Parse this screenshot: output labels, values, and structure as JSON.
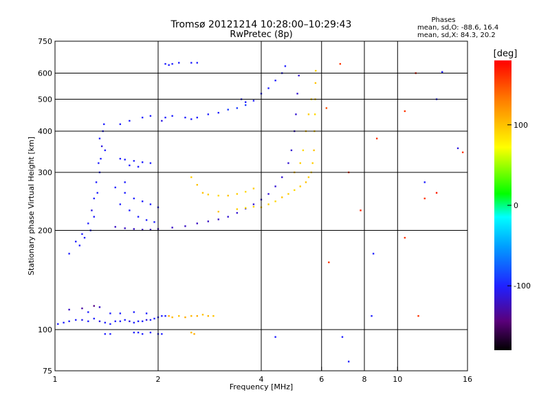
{
  "chart_data": {
    "type": "scatter",
    "title": "Tromsø 20121214 10:28:00–10:29:43",
    "subtitle": "RwPretec (8p)",
    "xlabel": "Frequency [MHz]",
    "ylabel": "Stationary phase Virtual Height [km]",
    "x_scale": "log",
    "y_scale": "log",
    "xlim": [
      1,
      16
    ],
    "ylim": [
      75,
      750
    ],
    "x_ticks": [
      1,
      2,
      4,
      6,
      8,
      10,
      16
    ],
    "y_ticks": [
      75,
      100,
      200,
      300,
      400,
      500,
      600,
      750
    ],
    "x_gridlines": [
      2,
      4,
      6,
      8,
      10
    ],
    "y_gridlines": [
      100,
      200,
      300,
      400,
      500,
      600
    ],
    "grid": true,
    "phase_stats": {
      "title": "Phases",
      "o_line": "mean, sd,O: -88.6, 16.4",
      "x_line": "mean, sd,X:  84.3, 20.2"
    },
    "colorbar": {
      "label": "[deg]",
      "range": [
        -180,
        180
      ],
      "ticks": [
        100,
        0,
        -100
      ],
      "colormap": "rainbow"
    },
    "series": [
      {
        "values": [
          [
            1.02,
            104,
            -100
          ],
          [
            1.06,
            105,
            -100
          ],
          [
            1.1,
            106,
            -100
          ],
          [
            1.15,
            107,
            -100
          ],
          [
            1.2,
            107,
            -105
          ],
          [
            1.25,
            106,
            -100
          ],
          [
            1.3,
            108,
            -100
          ],
          [
            1.35,
            106,
            -110
          ],
          [
            1.4,
            105,
            -100
          ],
          [
            1.45,
            104,
            -100
          ],
          [
            1.5,
            106,
            -100
          ],
          [
            1.55,
            106,
            -100
          ],
          [
            1.6,
            107,
            -100
          ],
          [
            1.65,
            106,
            -110
          ],
          [
            1.7,
            105,
            -100
          ],
          [
            1.75,
            106,
            -100
          ],
          [
            1.8,
            106,
            -100
          ],
          [
            1.85,
            107,
            -110
          ],
          [
            1.9,
            107,
            -100
          ],
          [
            1.95,
            108,
            -100
          ],
          [
            2.0,
            109,
            -100
          ],
          [
            2.05,
            110,
            -100
          ],
          [
            2.1,
            110,
            -100
          ],
          [
            1.1,
            115,
            -120
          ],
          [
            1.2,
            116,
            -130
          ],
          [
            1.3,
            118,
            -140
          ],
          [
            1.35,
            117,
            -120
          ],
          [
            1.25,
            113,
            -100
          ],
          [
            1.45,
            112,
            -100
          ],
          [
            1.55,
            112,
            -100
          ],
          [
            1.7,
            113,
            -100
          ],
          [
            1.85,
            112,
            -100
          ],
          [
            1.4,
            97,
            -100
          ],
          [
            1.45,
            97,
            -100
          ],
          [
            1.7,
            98,
            -100
          ],
          [
            1.75,
            98,
            -100
          ],
          [
            1.8,
            97,
            -100
          ],
          [
            1.9,
            98,
            -100
          ],
          [
            2.0,
            97,
            -100
          ],
          [
            2.05,
            97,
            -100
          ],
          [
            2.15,
            110,
            110
          ],
          [
            2.2,
            109,
            105
          ],
          [
            2.3,
            110,
            100
          ],
          [
            2.4,
            109,
            110
          ],
          [
            2.5,
            110,
            105
          ],
          [
            2.6,
            110,
            110
          ],
          [
            2.7,
            111,
            100
          ],
          [
            2.8,
            110,
            105
          ],
          [
            2.9,
            110,
            100
          ],
          [
            2.5,
            98,
            105
          ],
          [
            2.55,
            97,
            110
          ],
          [
            1.1,
            170,
            -100
          ],
          [
            1.15,
            185,
            -100
          ],
          [
            1.2,
            195,
            -100
          ],
          [
            1.25,
            210,
            -100
          ],
          [
            1.28,
            230,
            -110
          ],
          [
            1.3,
            250,
            -100
          ],
          [
            1.32,
            280,
            -100
          ],
          [
            1.35,
            300,
            -100
          ],
          [
            1.36,
            330,
            -100
          ],
          [
            1.37,
            360,
            -110
          ],
          [
            1.38,
            400,
            -100
          ],
          [
            1.35,
            380,
            -100
          ],
          [
            1.33,
            260,
            -100
          ],
          [
            1.3,
            220,
            -100
          ],
          [
            1.27,
            200,
            -100
          ],
          [
            1.22,
            190,
            -100
          ],
          [
            1.18,
            180,
            -100
          ],
          [
            1.39,
            420,
            -100
          ],
          [
            1.4,
            350,
            -100
          ],
          [
            1.34,
            320,
            -100
          ],
          [
            1.5,
            205,
            -120
          ],
          [
            1.6,
            203,
            -120
          ],
          [
            1.7,
            202,
            -120
          ],
          [
            1.8,
            201,
            -120
          ],
          [
            1.9,
            201,
            -120
          ],
          [
            2.0,
            202,
            -120
          ],
          [
            2.2,
            204,
            -120
          ],
          [
            2.4,
            206,
            -120
          ],
          [
            2.6,
            210,
            -120
          ],
          [
            2.8,
            213,
            -120
          ],
          [
            3.0,
            216,
            -120
          ],
          [
            3.2,
            220,
            -115
          ],
          [
            3.4,
            226,
            -115
          ],
          [
            3.6,
            233,
            -115
          ],
          [
            3.8,
            240,
            -115
          ],
          [
            4.0,
            248,
            -115
          ],
          [
            4.2,
            258,
            -115
          ],
          [
            4.4,
            272,
            -115
          ],
          [
            4.6,
            290,
            -115
          ],
          [
            4.8,
            320,
            -115
          ],
          [
            4.9,
            350,
            -115
          ],
          [
            5.0,
            400,
            -115
          ],
          [
            5.05,
            450,
            -115
          ],
          [
            5.1,
            520,
            -115
          ],
          [
            5.15,
            590,
            -115
          ],
          [
            1.6,
            260,
            -100
          ],
          [
            1.7,
            250,
            -100
          ],
          [
            1.8,
            245,
            -100
          ],
          [
            1.9,
            240,
            -100
          ],
          [
            2.0,
            235,
            -100
          ],
          [
            1.65,
            230,
            -100
          ],
          [
            1.75,
            220,
            -100
          ],
          [
            1.85,
            215,
            -100
          ],
          [
            1.95,
            212,
            -100
          ],
          [
            1.55,
            240,
            -100
          ],
          [
            1.5,
            270,
            -100
          ],
          [
            1.6,
            280,
            -100
          ],
          [
            1.55,
            330,
            -100
          ],
          [
            1.6,
            328,
            -100
          ],
          [
            1.7,
            325,
            -100
          ],
          [
            1.8,
            322,
            -100
          ],
          [
            1.9,
            320,
            -100
          ],
          [
            1.65,
            315,
            -100
          ],
          [
            1.75,
            312,
            -100
          ],
          [
            1.55,
            420,
            -100
          ],
          [
            1.65,
            430,
            -100
          ],
          [
            1.8,
            440,
            -100
          ],
          [
            1.9,
            445,
            -100
          ],
          [
            2.05,
            430,
            -110
          ],
          [
            2.1,
            440,
            -100
          ],
          [
            2.2,
            445,
            -100
          ],
          [
            2.4,
            440,
            -100
          ],
          [
            2.5,
            435,
            -100
          ],
          [
            2.6,
            440,
            -100
          ],
          [
            2.8,
            450,
            -100
          ],
          [
            3.0,
            455,
            -100
          ],
          [
            3.2,
            465,
            -90
          ],
          [
            3.4,
            470,
            -90
          ],
          [
            3.6,
            480,
            -90
          ],
          [
            2.1,
            640,
            -100
          ],
          [
            2.15,
            635,
            -100
          ],
          [
            2.2,
            640,
            -100
          ],
          [
            2.3,
            645,
            -100
          ],
          [
            2.5,
            645,
            -100
          ],
          [
            2.6,
            645,
            -100
          ],
          [
            3.5,
            500,
            -100
          ],
          [
            3.6,
            490,
            -100
          ],
          [
            3.8,
            495,
            -100
          ],
          [
            4.0,
            520,
            -100
          ],
          [
            4.2,
            540,
            -100
          ],
          [
            4.4,
            570,
            -100
          ],
          [
            4.6,
            600,
            -100
          ],
          [
            4.7,
            630,
            -100
          ],
          [
            6.3,
            160,
            160
          ],
          [
            6.9,
            95,
            -100
          ],
          [
            7.2,
            80,
            -100
          ],
          [
            4.4,
            95,
            -100
          ],
          [
            8.4,
            110,
            -100
          ],
          [
            8.5,
            170,
            -100
          ],
          [
            10.5,
            190,
            160
          ],
          [
            11.5,
            110,
            160
          ],
          [
            15.0,
            355,
            -110
          ],
          [
            13.5,
            605,
            -100
          ],
          [
            13.0,
            500,
            -100
          ],
          [
            12.0,
            280,
            -100
          ]
        ]
      },
      {
        "values": [
          [
            4.0,
            235,
            90
          ],
          [
            4.2,
            240,
            95
          ],
          [
            4.4,
            245,
            90
          ],
          [
            4.6,
            252,
            100
          ],
          [
            4.8,
            258,
            95
          ],
          [
            5.0,
            265,
            90
          ],
          [
            5.2,
            272,
            95
          ],
          [
            5.4,
            280,
            100
          ],
          [
            5.5,
            290,
            95
          ],
          [
            5.6,
            300,
            90
          ],
          [
            5.65,
            320,
            95
          ],
          [
            5.7,
            350,
            100
          ],
          [
            5.72,
            400,
            95
          ],
          [
            5.74,
            450,
            90
          ],
          [
            5.75,
            500,
            95
          ],
          [
            5.76,
            560,
            100
          ],
          [
            5.77,
            610,
            95
          ],
          [
            3.4,
            232,
            95
          ],
          [
            3.6,
            234,
            90
          ],
          [
            3.8,
            236,
            95
          ],
          [
            3.0,
            228,
            100
          ],
          [
            2.7,
            260,
            100
          ],
          [
            2.8,
            257,
            95
          ],
          [
            3.0,
            255,
            90
          ],
          [
            3.2,
            255,
            100
          ],
          [
            3.4,
            258,
            95
          ],
          [
            3.6,
            262,
            90
          ],
          [
            3.8,
            268,
            95
          ],
          [
            2.6,
            275,
            100
          ],
          [
            2.5,
            290,
            95
          ],
          [
            5.0,
            300,
            100
          ],
          [
            5.2,
            320,
            95
          ],
          [
            5.3,
            350,
            90
          ],
          [
            5.4,
            400,
            100
          ],
          [
            5.5,
            450,
            95
          ],
          [
            5.6,
            500,
            90
          ],
          [
            6.8,
            640,
            160
          ],
          [
            6.2,
            470,
            150
          ],
          [
            7.2,
            300,
            160
          ],
          [
            7.8,
            230,
            165
          ],
          [
            8.7,
            380,
            160
          ],
          [
            10.5,
            460,
            160
          ],
          [
            11.3,
            600,
            170
          ],
          [
            12.0,
            250,
            160
          ],
          [
            13.0,
            260,
            170
          ],
          [
            15.5,
            345,
            160
          ]
        ]
      }
    ]
  }
}
